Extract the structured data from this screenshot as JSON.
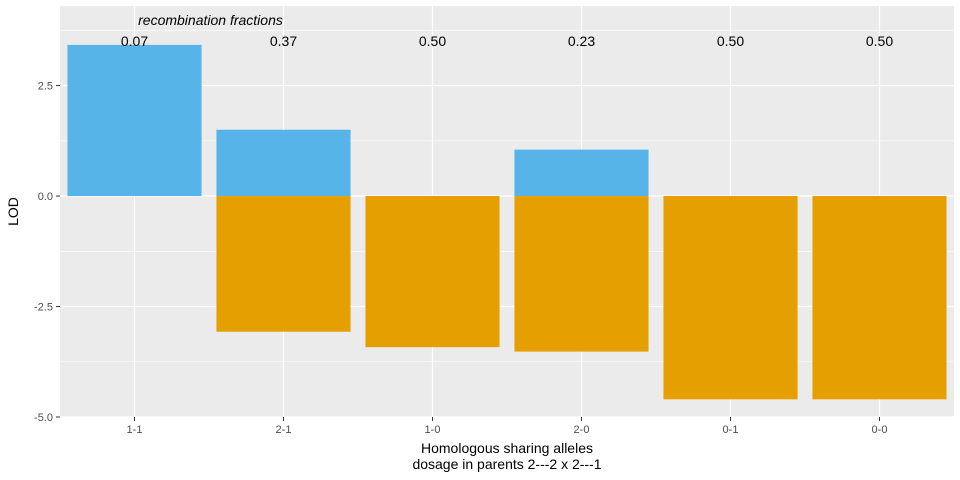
{
  "chart_data": {
    "type": "bar",
    "annotation": "recombination fractions",
    "xlabel_line1": "Homologous sharing alleles",
    "xlabel_line2": "dosage in parents  2---2  x  2---1",
    "ylabel": "LOD",
    "categories": [
      "1-1",
      "2-1",
      "1-0",
      "2-0",
      "0-1",
      "0-0"
    ],
    "recombination_fractions": [
      "0.07",
      "0.37",
      "0.50",
      "0.23",
      "0.50",
      "0.50"
    ],
    "series": [
      {
        "values": [
          3.42,
          1.5,
          0.0,
          1.05,
          0.0,
          0.0
        ],
        "color": "#56B4E9"
      },
      {
        "values": [
          0.0,
          -3.07,
          -3.42,
          -3.52,
          -4.6,
          -4.6
        ],
        "color": "#E69F00"
      }
    ],
    "ylim": [
      -5.0,
      4.3
    ],
    "yticks": [
      -5.0,
      -2.5,
      0.0,
      2.5
    ],
    "ytick_labels": [
      "-5.0",
      "-2.5",
      "0.0",
      "2.5"
    ],
    "grid": true,
    "background_color": "#EBEBEB"
  }
}
